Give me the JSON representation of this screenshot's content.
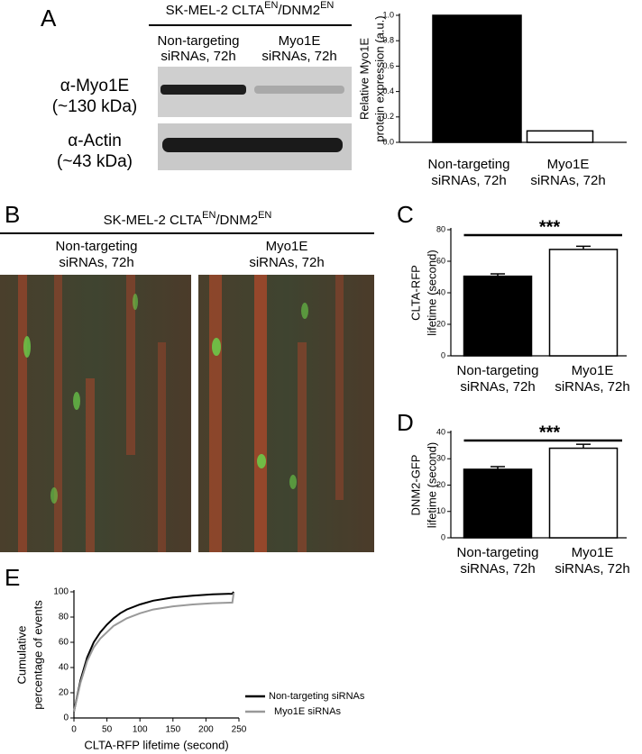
{
  "figure": {
    "panel_labels": [
      "A",
      "B",
      "C",
      "D",
      "E"
    ],
    "blot_header": [
      "SK-MEL-2 CLTA",
      "EN",
      "/DNM2",
      "EN"
    ],
    "blot_columns": [
      [
        "Non-targeting",
        "siRNAs, 72h"
      ],
      [
        "Myo1E",
        "siRNAs, 72h"
      ]
    ],
    "blot_rows": [
      [
        "α-Myo1E",
        "(~130 kDa)"
      ],
      [
        "α-Actin",
        "(~43 kDa)"
      ]
    ],
    "kymo_header": [
      "SK-MEL-2 CLTA",
      "EN",
      "/DNM2",
      "EN"
    ],
    "kymo_columns": [
      [
        "Non-targeting",
        "siRNAs, 72h"
      ],
      [
        "Myo1E",
        "siRNAs, 72h"
      ]
    ]
  },
  "chart_data": [
    {
      "type": "bar",
      "ylabel": [
        "Relative Myo1E",
        "protein expression (a.u.)"
      ],
      "categories": [
        [
          "Non-targeting",
          "siRNAs, 72h"
        ],
        [
          "Myo1E",
          "siRNAs, 72h"
        ]
      ],
      "values": [
        1.0,
        0.09
      ],
      "colors": [
        "#000000",
        "#ffffff"
      ],
      "ylim": [
        0,
        1
      ],
      "yticks": [
        {
          "value": 0,
          "label": "0.0"
        },
        {
          "value": 0.2,
          "label": "0.2"
        },
        {
          "value": 0.4,
          "label": "0.4"
        },
        {
          "value": 0.6,
          "label": "0.6"
        },
        {
          "value": 0.8,
          "label": "0.8"
        },
        {
          "value": 1,
          "label": "1.0"
        }
      ]
    },
    {
      "type": "bar",
      "ylabel": [
        "CLTA-RFP",
        "lifetime (second)"
      ],
      "categories": [
        [
          "Non-targeting",
          "siRNAs, 72h"
        ],
        [
          "Myo1E",
          "siRNAs, 72h"
        ]
      ],
      "values": [
        50.5,
        67.5
      ],
      "errors": [
        1.5,
        2
      ],
      "colors": [
        "#000000",
        "#ffffff"
      ],
      "annotation": "***",
      "ylim": [
        0,
        80
      ],
      "yticks": [
        0,
        20,
        40,
        60,
        80
      ]
    },
    {
      "type": "bar",
      "ylabel": [
        "DNM2-GFP",
        "lifetime (second)"
      ],
      "categories": [
        [
          "Non-targeting",
          "siRNAs, 72h"
        ],
        [
          "Myo1E",
          "siRNAs, 72h"
        ]
      ],
      "values": [
        26,
        34
      ],
      "errors": [
        1,
        1.5
      ],
      "colors": [
        "#000000",
        "#ffffff"
      ],
      "annotation": "***",
      "ylim": [
        0,
        40
      ],
      "yticks": [
        0,
        10,
        20,
        30,
        40
      ]
    },
    {
      "type": "line",
      "ylabel": [
        "Cumulative",
        "percentage of events"
      ],
      "xlabel": "CLTA-RFP lifetime (second)",
      "x": [
        0,
        10,
        20,
        30,
        40,
        50,
        60,
        70,
        80,
        100,
        120,
        150,
        180,
        210,
        240,
        242
      ],
      "series": [
        {
          "name": "Non-targeting siRNAs",
          "color": "#000000",
          "values": [
            5,
            30,
            48,
            60,
            68,
            74,
            79,
            83,
            86,
            90,
            93,
            95.5,
            97,
            98,
            98.5,
            100
          ]
        },
        {
          "name": "Myo1E siRNAs",
          "color": "#999999",
          "values": [
            5,
            28,
            45,
            56,
            63,
            68,
            73,
            76,
            79,
            83,
            86,
            88.5,
            90,
            91,
            91.5,
            99
          ]
        }
      ],
      "legend": "right",
      "xlim": [
        0,
        250
      ],
      "xticks": [
        0,
        50,
        100,
        150,
        200,
        250
      ],
      "ylim": [
        0,
        100
      ],
      "yticks": [
        0,
        20,
        40,
        60,
        80,
        100
      ]
    }
  ]
}
